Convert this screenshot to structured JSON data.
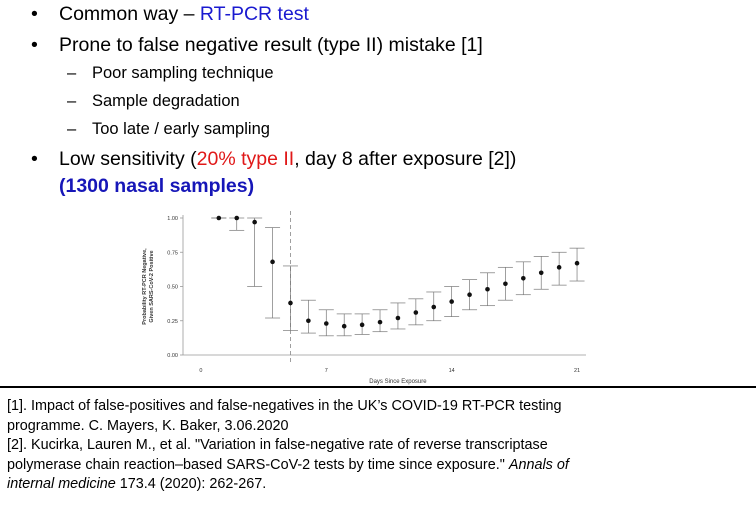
{
  "bullets": [
    {
      "marker": "•",
      "prefix": "Common way – ",
      "highlight": "RT-PCR test"
    },
    {
      "marker": "•",
      "text": "Prone to false negative result (type II) mistake [1]"
    },
    {
      "marker": "–",
      "text": "Poor sampling technique"
    },
    {
      "marker": "–",
      "text": "Sample degradation"
    },
    {
      "marker": "–",
      "text": "Too late / early sampling"
    },
    {
      "marker": "•",
      "prefix": "Low sensitivity (",
      "highlight": "20% type II",
      "suffix": ", day 8 after exposure [2])",
      "line2": "(1300 nasal samples)"
    }
  ],
  "colors": {
    "blue": "#1a1ad0",
    "red": "#e01818",
    "bold_blue": "#1616b8",
    "axis": "#999999",
    "point": "#111111"
  },
  "chart_data": {
    "type": "scatter",
    "ylabel_line1": "Probability RT-PCR Negative,",
    "ylabel_line2": "Given SARS-CoV-2 Positive",
    "xlabel": "Days Since Exposure",
    "xticks": [
      0,
      7,
      14,
      21
    ],
    "yticks": [
      "0.00",
      "0.25",
      "0.50",
      "0.75",
      "1.00"
    ],
    "xlim": [
      -1,
      21.5
    ],
    "ylim": [
      0,
      1.0
    ],
    "vline_x": 5,
    "points": [
      {
        "x": 1,
        "y": 1.0,
        "lo": 1.0,
        "hi": 1.0
      },
      {
        "x": 2,
        "y": 1.0,
        "lo": 0.91,
        "hi": 1.0
      },
      {
        "x": 3,
        "y": 0.97,
        "lo": 0.5,
        "hi": 1.0
      },
      {
        "x": 4,
        "y": 0.68,
        "lo": 0.27,
        "hi": 0.93
      },
      {
        "x": 5,
        "y": 0.38,
        "lo": 0.18,
        "hi": 0.65
      },
      {
        "x": 6,
        "y": 0.25,
        "lo": 0.16,
        "hi": 0.4
      },
      {
        "x": 7,
        "y": 0.23,
        "lo": 0.14,
        "hi": 0.33
      },
      {
        "x": 8,
        "y": 0.21,
        "lo": 0.14,
        "hi": 0.3
      },
      {
        "x": 9,
        "y": 0.22,
        "lo": 0.15,
        "hi": 0.3
      },
      {
        "x": 10,
        "y": 0.24,
        "lo": 0.17,
        "hi": 0.33
      },
      {
        "x": 11,
        "y": 0.27,
        "lo": 0.19,
        "hi": 0.38
      },
      {
        "x": 12,
        "y": 0.31,
        "lo": 0.22,
        "hi": 0.41
      },
      {
        "x": 13,
        "y": 0.35,
        "lo": 0.25,
        "hi": 0.46
      },
      {
        "x": 14,
        "y": 0.39,
        "lo": 0.28,
        "hi": 0.5
      },
      {
        "x": 15,
        "y": 0.44,
        "lo": 0.33,
        "hi": 0.55
      },
      {
        "x": 16,
        "y": 0.48,
        "lo": 0.36,
        "hi": 0.6
      },
      {
        "x": 17,
        "y": 0.52,
        "lo": 0.4,
        "hi": 0.64
      },
      {
        "x": 18,
        "y": 0.56,
        "lo": 0.44,
        "hi": 0.68
      },
      {
        "x": 19,
        "y": 0.6,
        "lo": 0.48,
        "hi": 0.72
      },
      {
        "x": 20,
        "y": 0.64,
        "lo": 0.51,
        "hi": 0.75
      },
      {
        "x": 21,
        "y": 0.67,
        "lo": 0.54,
        "hi": 0.78
      }
    ]
  },
  "references": {
    "r1_line1": "[1]. Impact of false-positives and false-negatives in the UK’s COVID-19 RT-PCR testing",
    "r1_line2": "programme.  C. Mayers, K. Baker, 3.06.2020",
    "r2_line1": "[2]. Kucirka, Lauren M., et al. \"Variation in false-negative rate of reverse transcriptase",
    "r2_line2": "polymerase chain reaction–based SARS-CoV-2 tests by time since exposure.\" ",
    "r2_journal_a": "Annals of",
    "r2_journal_b": "internal medicine",
    "r2_line3_rest": " 173.4 (2020): 262-267."
  }
}
